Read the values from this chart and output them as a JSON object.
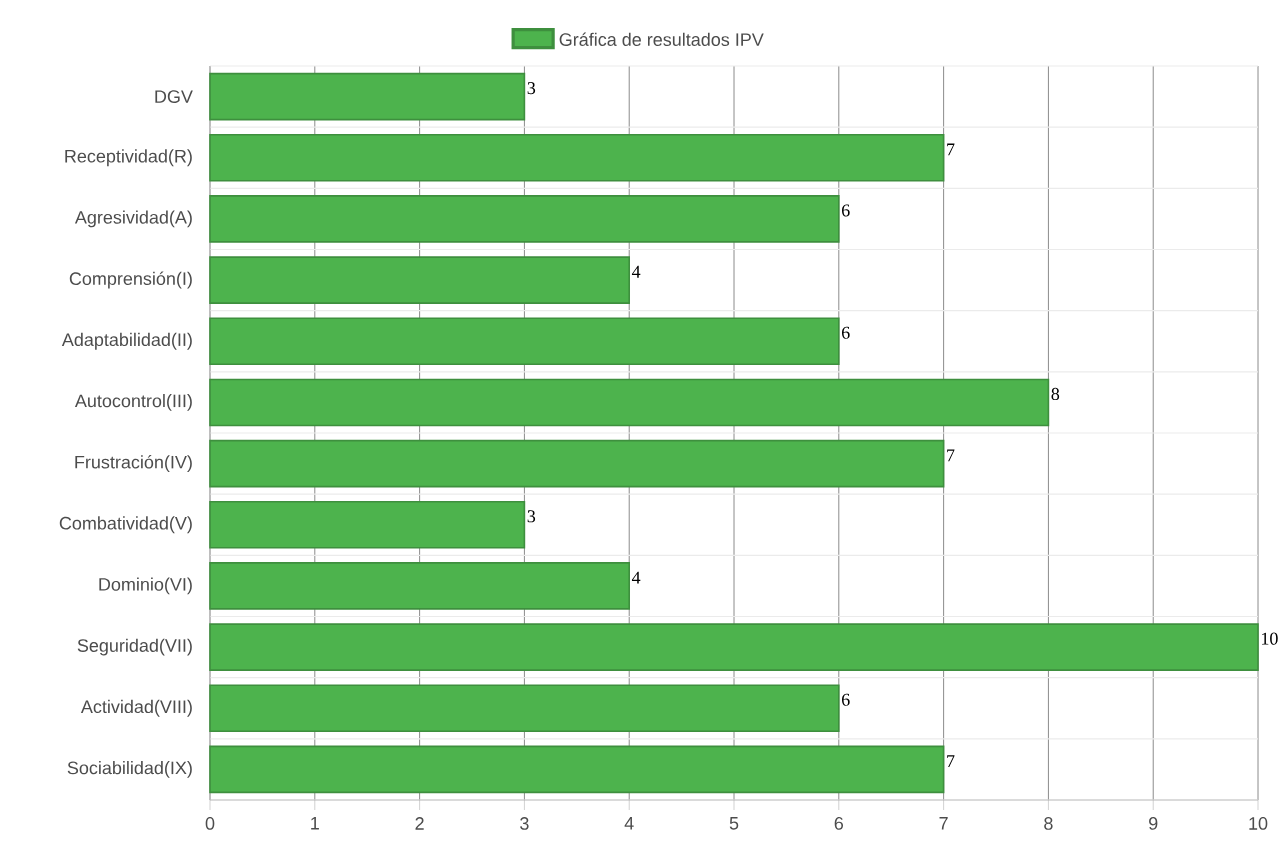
{
  "chart_data": {
    "type": "bar",
    "orientation": "horizontal",
    "categories": [
      "DGV",
      "Receptividad(R)",
      "Agresividad(A)",
      "Comprensión(I)",
      "Adaptabilidad(II)",
      "Autocontrol(III)",
      "Frustración(IV)",
      "Combatividad(V)",
      "Dominio(VI)",
      "Seguridad(VII)",
      "Actividad(VIII)",
      "Sociabilidad(IX)"
    ],
    "series": [
      {
        "name": "Gráfica de resultados IPV",
        "color": "#4db34d",
        "values": [
          3,
          7,
          6,
          4,
          6,
          8,
          7,
          3,
          4,
          10,
          6,
          7
        ]
      }
    ],
    "xlim": [
      0,
      10
    ],
    "xticks": [
      0,
      1,
      2,
      3,
      4,
      5,
      6,
      7,
      8,
      9,
      10
    ],
    "grid": true,
    "legend": "top",
    "data_labels": true
  }
}
